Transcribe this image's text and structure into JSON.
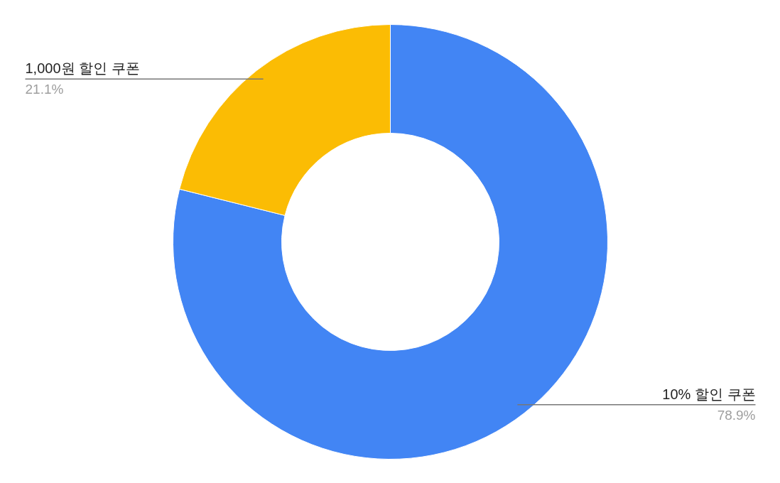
{
  "chart_data": {
    "type": "donut",
    "categories": [
      "10% 할인 쿠폰",
      "1,000원 할인 쿠폰"
    ],
    "values": [
      78.9,
      21.1
    ],
    "colors": [
      "#4285f4",
      "#fbbc04"
    ],
    "value_labels": [
      "78.9%",
      "21.1%"
    ]
  }
}
